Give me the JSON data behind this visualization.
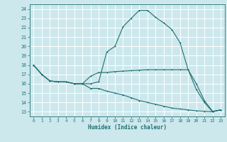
{
  "bg_color": "#cce8ed",
  "grid_color": "#ffffff",
  "line_color": "#1e7070",
  "xlabel": "Humidex (Indice chaleur)",
  "xlim": [
    -0.5,
    23.5
  ],
  "ylim": [
    12.5,
    24.5
  ],
  "yticks": [
    13,
    14,
    15,
    16,
    17,
    18,
    19,
    20,
    21,
    22,
    23,
    24
  ],
  "xticks": [
    0,
    1,
    2,
    3,
    4,
    5,
    6,
    7,
    8,
    9,
    10,
    11,
    12,
    13,
    14,
    15,
    16,
    17,
    18,
    19,
    20,
    21,
    22,
    23
  ],
  "line1_x": [
    0,
    1,
    2,
    3,
    4,
    5,
    6,
    7,
    8,
    9,
    10,
    11,
    12,
    13,
    14,
    15,
    16,
    17,
    18,
    19,
    20,
    21,
    22,
    23
  ],
  "line1_y": [
    18.0,
    17.0,
    16.3,
    16.2,
    16.2,
    16.0,
    16.0,
    16.0,
    16.2,
    19.4,
    20.0,
    22.1,
    23.0,
    23.85,
    23.85,
    23.1,
    22.5,
    21.8,
    20.4,
    17.5,
    15.4,
    14.0,
    13.0,
    13.2
  ],
  "line2_x": [
    0,
    1,
    2,
    3,
    4,
    5,
    6,
    7,
    8,
    9,
    10,
    11,
    12,
    13,
    14,
    15,
    16,
    17,
    18,
    19,
    20,
    21,
    22,
    23
  ],
  "line2_y": [
    18.0,
    17.0,
    16.3,
    16.2,
    16.2,
    16.0,
    16.0,
    16.8,
    17.2,
    17.2,
    17.3,
    17.35,
    17.4,
    17.45,
    17.5,
    17.5,
    17.5,
    17.5,
    17.5,
    17.5,
    16.0,
    14.2,
    13.05,
    13.2
  ],
  "line3_x": [
    0,
    1,
    2,
    3,
    4,
    5,
    6,
    7,
    8,
    9,
    10,
    11,
    12,
    13,
    14,
    15,
    16,
    17,
    18,
    19,
    20,
    21,
    22,
    23
  ],
  "line3_y": [
    18.0,
    17.0,
    16.3,
    16.2,
    16.2,
    16.0,
    16.0,
    15.5,
    15.5,
    15.2,
    15.0,
    14.8,
    14.5,
    14.2,
    14.0,
    13.8,
    13.6,
    13.4,
    13.3,
    13.2,
    13.1,
    13.05,
    13.0,
    13.2
  ]
}
